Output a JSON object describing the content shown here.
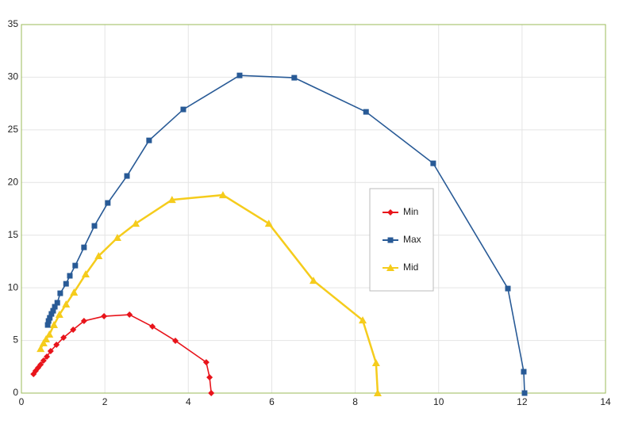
{
  "chart_data": {
    "type": "scatter-line",
    "xlim": [
      0,
      14
    ],
    "xticks": [
      0,
      2,
      4,
      6,
      8,
      10,
      12,
      14
    ],
    "ylim": [
      0,
      35
    ],
    "yticks": [
      0,
      5,
      10,
      15,
      20,
      25,
      30,
      35
    ],
    "grid": true,
    "legend": "right",
    "series": [
      {
        "name": "Min",
        "color": "#e8141b",
        "marker": "diamond",
        "x": [
          0.29,
          0.34,
          0.4,
          0.46,
          0.53,
          0.61,
          0.7,
          0.84,
          1.01,
          1.24,
          1.5,
          1.98,
          2.59,
          3.14,
          3.69,
          4.43,
          4.51,
          4.55
        ],
        "values": [
          1.81,
          2.11,
          2.41,
          2.71,
          3.09,
          3.46,
          3.99,
          4.59,
          5.27,
          6.02,
          6.85,
          7.3,
          7.45,
          6.32,
          4.97,
          2.93,
          1.5,
          0
        ]
      },
      {
        "name": "Max",
        "color": "#285a96",
        "marker": "square",
        "x": [
          0.63,
          0.65,
          0.68,
          0.72,
          0.76,
          0.8,
          0.86,
          0.93,
          1.07,
          1.16,
          1.29,
          1.5,
          1.75,
          2.07,
          2.53,
          3.06,
          3.88,
          5.23,
          6.54,
          8.26,
          9.87,
          11.66,
          12.04,
          12.06
        ],
        "values": [
          6.47,
          6.85,
          7.15,
          7.52,
          7.82,
          8.2,
          8.58,
          9.48,
          10.38,
          11.14,
          12.11,
          13.84,
          15.88,
          18.06,
          20.62,
          24.0,
          26.94,
          30.17,
          29.95,
          26.71,
          21.82,
          9.93,
          2.03,
          0
        ]
      },
      {
        "name": "Mid",
        "color": "#f5cc1c",
        "marker": "triangle",
        "x": [
          0.46,
          0.53,
          0.59,
          0.67,
          0.78,
          0.91,
          1.07,
          1.26,
          1.54,
          1.85,
          2.3,
          2.74,
          3.61,
          4.83,
          5.93,
          7.0,
          8.18,
          8.5,
          8.54
        ],
        "values": [
          4.21,
          4.74,
          5.12,
          5.57,
          6.47,
          7.45,
          8.43,
          9.56,
          11.29,
          13.02,
          14.75,
          16.1,
          18.36,
          18.81,
          16.1,
          10.68,
          6.92,
          2.86,
          0
        ]
      }
    ]
  }
}
